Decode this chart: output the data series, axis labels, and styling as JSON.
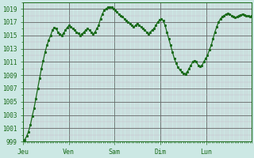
{
  "background_color": "#cce8e4",
  "plot_bg_color": "#cce8e4",
  "line_color": "#1a6b1a",
  "minor_grid_color": "#c8b8c8",
  "major_grid_color": "#666666",
  "tick_label_color": "#1a6b1a",
  "ylim": [
    999,
    1020
  ],
  "yticks": [
    999,
    1001,
    1003,
    1005,
    1007,
    1009,
    1011,
    1013,
    1015,
    1017,
    1019
  ],
  "day_labels": [
    "Jeu",
    "Ven",
    "Sam",
    "Dim",
    "Lun"
  ],
  "day_positions": [
    0,
    24,
    48,
    72,
    96
  ],
  "total_hours": 120,
  "pressure_values": [
    999.0,
    999.3,
    999.8,
    1000.5,
    1001.5,
    1002.8,
    1004.0,
    1005.5,
    1007.0,
    1008.5,
    1010.0,
    1011.2,
    1012.5,
    1013.5,
    1014.3,
    1015.0,
    1015.8,
    1016.2,
    1016.0,
    1015.5,
    1015.2,
    1015.0,
    1015.3,
    1015.8,
    1016.2,
    1016.5,
    1016.3,
    1016.0,
    1015.8,
    1015.5,
    1015.3,
    1015.0,
    1015.2,
    1015.5,
    1015.8,
    1016.0,
    1015.8,
    1015.5,
    1015.2,
    1015.5,
    1016.0,
    1016.5,
    1017.5,
    1018.2,
    1018.8,
    1019.0,
    1019.2,
    1019.3,
    1019.2,
    1019.0,
    1018.8,
    1018.5,
    1018.2,
    1018.0,
    1017.8,
    1017.5,
    1017.2,
    1017.0,
    1016.8,
    1016.5,
    1016.3,
    1016.5,
    1016.8,
    1016.5,
    1016.3,
    1016.0,
    1015.8,
    1015.5,
    1015.2,
    1015.5,
    1015.8,
    1016.0,
    1016.5,
    1017.0,
    1017.3,
    1017.5,
    1017.2,
    1016.5,
    1015.5,
    1014.5,
    1013.5,
    1012.5,
    1011.5,
    1010.8,
    1010.2,
    1009.8,
    1009.5,
    1009.3,
    1009.2,
    1009.5,
    1010.0,
    1010.5,
    1011.0,
    1011.2,
    1011.0,
    1010.5,
    1010.3,
    1010.5,
    1011.0,
    1011.5,
    1012.0,
    1012.8,
    1013.5,
    1014.5,
    1015.5,
    1016.3,
    1017.0,
    1017.5,
    1017.8,
    1018.0,
    1018.2,
    1018.3,
    1018.2,
    1018.0,
    1017.8,
    1017.7,
    1017.8,
    1018.0,
    1018.1,
    1018.2,
    1018.1,
    1018.0,
    1017.9,
    1017.8,
    1017.9
  ]
}
